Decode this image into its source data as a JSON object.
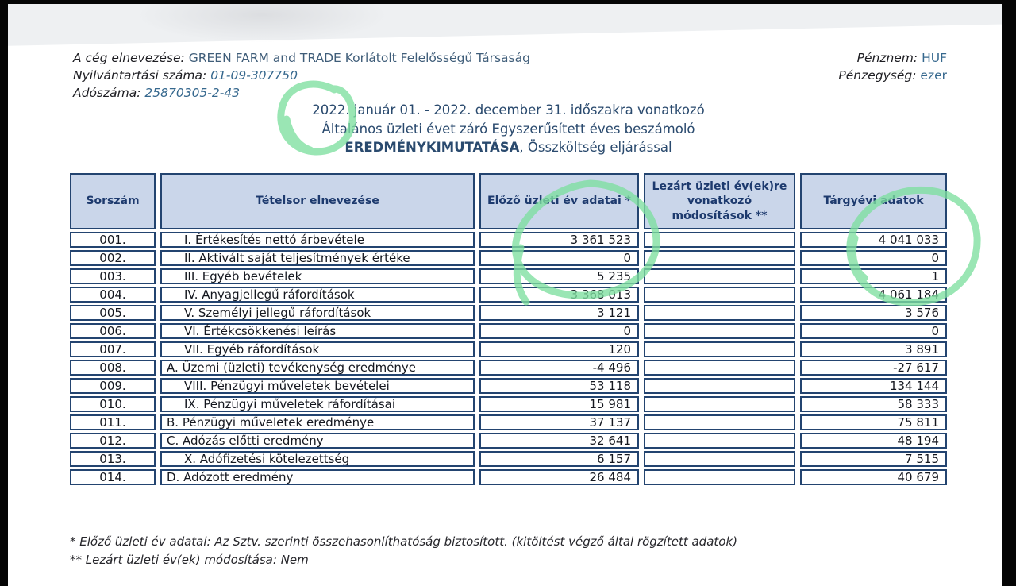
{
  "document": {
    "company": {
      "label": "A cég elnevezése:",
      "value": "GREEN FARM and TRADE Korlátolt Felelősségű Társaság"
    },
    "registration": {
      "label": "Nyilvántartási száma:",
      "value": "01-09-307750"
    },
    "tax_id": {
      "label": "Adószáma:",
      "value": "25870305-2-43"
    },
    "currency": {
      "label": "Pénznem:",
      "value": "HUF"
    },
    "unit": {
      "label": "Pénzegység:",
      "value": "ezer"
    },
    "title": {
      "line1": "2022. január 01. - 2022. december 31. időszakra vonatkozó",
      "line2": "Általános üzleti évet záró Egyszerűsített éves beszámoló",
      "line3_bold": "EREDMÉNYKIMUTATÁSA",
      "line3_rest": ", Összköltség eljárással"
    },
    "footnotes": {
      "note1": "* Előző üzleti év adatai: Az Sztv. szerinti összehasonlíthatóság biztosított. (kitöltést végző által rögzített adatok)",
      "note2": "** Lezárt üzleti év(ek) módosítása: Nem"
    }
  },
  "table": {
    "headers": [
      "Sorszám",
      "Tételsor elnevezése",
      "Előző üzleti év adatai *",
      "Lezárt üzleti év(ek)re vonatkozó módosítások **",
      "Tárgyévi adatok"
    ],
    "rows": [
      {
        "no": "001.",
        "label": "I. Értékesítés nettó árbevétele",
        "indent": true,
        "prev": "3 361 523",
        "mod": "",
        "curr": "4 041 033"
      },
      {
        "no": "002.",
        "label": "II. Aktivált saját teljesítmények értéke",
        "indent": true,
        "prev": "0",
        "mod": "",
        "curr": "0"
      },
      {
        "no": "003.",
        "label": "III. Egyéb bevételek",
        "indent": true,
        "prev": "5 235",
        "mod": "",
        "curr": "1"
      },
      {
        "no": "004.",
        "label": "IV. Anyagjellegű ráfordítások",
        "indent": true,
        "prev": "3 368 013",
        "mod": "",
        "curr": "4 061 184"
      },
      {
        "no": "005.",
        "label": "V. Személyi jellegű ráfordítások",
        "indent": true,
        "prev": "3 121",
        "mod": "",
        "curr": "3 576"
      },
      {
        "no": "006.",
        "label": "VI. Értékcsökkenési leírás",
        "indent": true,
        "prev": "0",
        "mod": "",
        "curr": "0"
      },
      {
        "no": "007.",
        "label": "VII. Egyéb ráfordítások",
        "indent": true,
        "prev": "120",
        "mod": "",
        "curr": "3 891"
      },
      {
        "no": "008.",
        "label": "A. Üzemi (üzleti) tevékenység eredménye",
        "indent": false,
        "prev": "-4 496",
        "mod": "",
        "curr": "-27 617"
      },
      {
        "no": "009.",
        "label": "VIII. Pénzügyi műveletek bevételei",
        "indent": true,
        "prev": "53 118",
        "mod": "",
        "curr": "134 144"
      },
      {
        "no": "010.",
        "label": "IX. Pénzügyi műveletek ráfordításai",
        "indent": true,
        "prev": "15 981",
        "mod": "",
        "curr": "58 333"
      },
      {
        "no": "011.",
        "label": "B. Pénzügyi műveletek eredménye",
        "indent": false,
        "prev": "37 137",
        "mod": "",
        "curr": "75 811"
      },
      {
        "no": "012.",
        "label": "C. Adózás előtti eredmény",
        "indent": false,
        "prev": "32 641",
        "mod": "",
        "curr": "48 194"
      },
      {
        "no": "013.",
        "label": "X. Adófizetési kötelezettség",
        "indent": true,
        "prev": "6 157",
        "mod": "",
        "curr": "7 515"
      },
      {
        "no": "014.",
        "label": "D. Adózott eredmény",
        "indent": false,
        "prev": "26 484",
        "mod": "",
        "curr": "40 679"
      }
    ]
  },
  "annotations": {
    "color": "#7ee0a0",
    "items": [
      "circle-around-2022",
      "circle-previous-year-data",
      "circle-current-year-data"
    ]
  },
  "colors": {
    "table_border": "#234470",
    "header_fill": "#cad6ea",
    "header_text": "#1d3a6e",
    "title_text": "#2a4a6e",
    "value_blue": "#36688e"
  }
}
